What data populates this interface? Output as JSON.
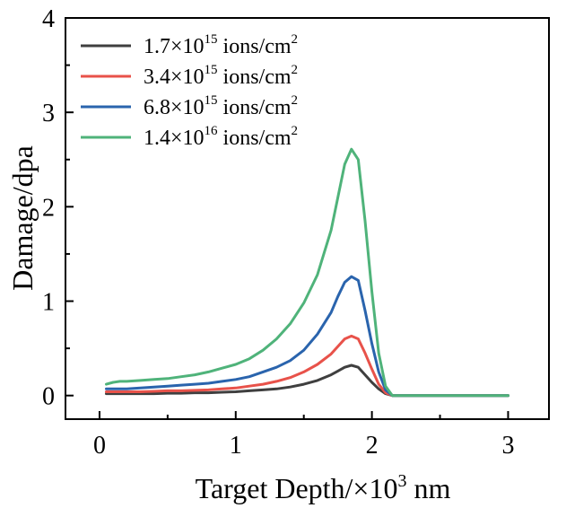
{
  "chart_data": {
    "type": "line",
    "title": "",
    "xlabel": {
      "main": "Target Depth/×10",
      "sup": "3",
      "rest": " nm"
    },
    "ylabel": "Damage/dpa",
    "xlim": [
      -0.25,
      3.3
    ],
    "ylim": [
      -0.25,
      4.0
    ],
    "xticks": [
      0,
      1,
      2,
      3
    ],
    "yticks": [
      0,
      1,
      2,
      3,
      4
    ],
    "grid": false,
    "legend_position": "top-left",
    "series": [
      {
        "name": {
          "pre": "1.7×10",
          "sup": "15",
          "mid": " ions/cm",
          "sup2": "2"
        },
        "color": "#3f3f3f",
        "x": [
          0.05,
          0.1,
          0.15,
          0.2,
          0.3,
          0.4,
          0.5,
          0.6,
          0.7,
          0.8,
          0.9,
          1.0,
          1.1,
          1.2,
          1.3,
          1.4,
          1.5,
          1.6,
          1.7,
          1.75,
          1.8,
          1.85,
          1.9,
          1.95,
          2.0,
          2.05,
          2.1,
          2.15,
          2.2,
          2.3,
          2.5,
          2.7,
          3.0
        ],
        "y": [
          0.02,
          0.02,
          0.02,
          0.02,
          0.02,
          0.02,
          0.025,
          0.025,
          0.03,
          0.03,
          0.035,
          0.04,
          0.05,
          0.06,
          0.07,
          0.09,
          0.12,
          0.16,
          0.22,
          0.26,
          0.3,
          0.32,
          0.3,
          0.22,
          0.14,
          0.07,
          0.02,
          0.0,
          0.0,
          0.0,
          0.0,
          0.0,
          0.0
        ]
      },
      {
        "name": {
          "pre": "3.4×10",
          "sup": "15",
          "mid": " ions/cm",
          "sup2": "2"
        },
        "color": "#e8524a",
        "x": [
          0.05,
          0.1,
          0.15,
          0.2,
          0.3,
          0.4,
          0.5,
          0.6,
          0.7,
          0.8,
          0.9,
          1.0,
          1.1,
          1.2,
          1.3,
          1.4,
          1.5,
          1.6,
          1.7,
          1.75,
          1.8,
          1.85,
          1.9,
          1.95,
          2.0,
          2.05,
          2.1,
          2.15,
          2.2,
          2.3,
          2.5,
          2.7,
          3.0
        ],
        "y": [
          0.04,
          0.04,
          0.04,
          0.04,
          0.04,
          0.045,
          0.05,
          0.05,
          0.055,
          0.06,
          0.07,
          0.08,
          0.1,
          0.12,
          0.15,
          0.19,
          0.25,
          0.33,
          0.44,
          0.52,
          0.6,
          0.63,
          0.6,
          0.45,
          0.28,
          0.12,
          0.03,
          0.0,
          0.0,
          0.0,
          0.0,
          0.0,
          0.0
        ]
      },
      {
        "name": {
          "pre": "6.8×10",
          "sup": "15",
          "mid": " ions/cm",
          "sup2": "2"
        },
        "color": "#2a64ad",
        "x": [
          0.05,
          0.1,
          0.15,
          0.2,
          0.3,
          0.4,
          0.5,
          0.6,
          0.7,
          0.8,
          0.9,
          1.0,
          1.1,
          1.2,
          1.3,
          1.4,
          1.5,
          1.6,
          1.7,
          1.75,
          1.8,
          1.85,
          1.9,
          1.95,
          2.0,
          2.05,
          2.1,
          2.15,
          2.2,
          2.3,
          2.5,
          2.7,
          3.0
        ],
        "y": [
          0.07,
          0.07,
          0.07,
          0.07,
          0.08,
          0.09,
          0.1,
          0.11,
          0.12,
          0.13,
          0.15,
          0.17,
          0.2,
          0.25,
          0.3,
          0.37,
          0.48,
          0.65,
          0.88,
          1.05,
          1.2,
          1.26,
          1.22,
          0.9,
          0.55,
          0.25,
          0.06,
          0.0,
          0.0,
          0.0,
          0.0,
          0.0,
          0.0
        ]
      },
      {
        "name": {
          "pre": "1.4×10",
          "sup": "16",
          "mid": " ions/cm",
          "sup2": "2"
        },
        "color": "#4fb37a",
        "x": [
          0.05,
          0.1,
          0.15,
          0.2,
          0.3,
          0.4,
          0.5,
          0.6,
          0.7,
          0.8,
          0.9,
          1.0,
          1.1,
          1.2,
          1.3,
          1.4,
          1.5,
          1.6,
          1.7,
          1.75,
          1.8,
          1.85,
          1.9,
          1.95,
          2.0,
          2.05,
          2.1,
          2.15,
          2.2,
          2.3,
          2.5,
          2.7,
          3.0
        ],
        "y": [
          0.12,
          0.14,
          0.15,
          0.15,
          0.16,
          0.17,
          0.18,
          0.2,
          0.22,
          0.25,
          0.29,
          0.33,
          0.39,
          0.48,
          0.6,
          0.76,
          0.98,
          1.28,
          1.75,
          2.1,
          2.45,
          2.61,
          2.5,
          1.85,
          1.1,
          0.45,
          0.1,
          0.0,
          0.0,
          0.0,
          0.0,
          0.0,
          0.0
        ]
      }
    ]
  }
}
